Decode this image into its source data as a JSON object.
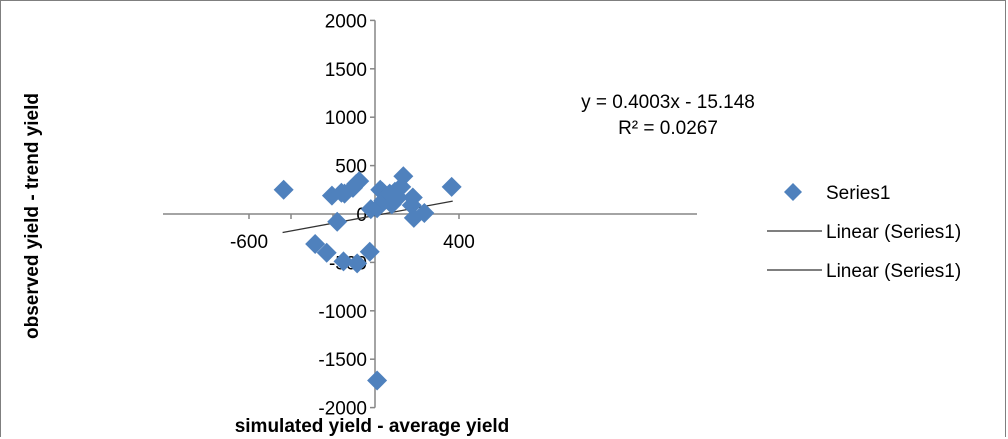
{
  "chart_data": {
    "type": "scatter",
    "title": "",
    "xlabel": "simulated yield - average yield",
    "ylabel": "observed yield - trend yield",
    "xlim": [
      -700,
      600
    ],
    "ylim": [
      -2000,
      2000
    ],
    "x_tick_labels": [
      {
        "value": -600,
        "label": "-600"
      },
      {
        "value": 400,
        "label": "400"
      }
    ],
    "y_ticks": [
      2000,
      1500,
      1000,
      500,
      0,
      -500,
      -1000,
      -1500,
      -2000
    ],
    "y_tick_labels": [
      "2000",
      "1500",
      "1000",
      "500",
      "0",
      "-500",
      "-1000",
      "-1500",
      "-2000"
    ],
    "grid": false,
    "legend_position": "right",
    "legend": [
      {
        "label": "Series1",
        "kind": "marker"
      },
      {
        "label": "Linear (Series1)",
        "kind": "line"
      },
      {
        "label": "Linear (Series1)",
        "kind": "line"
      }
    ],
    "trendline": {
      "equation": "y = 0.4003x - 15.148",
      "r_squared": "R² = 0.0267",
      "slope": 0.4003,
      "intercept": -15.148,
      "x_range": [
        -440,
        370
      ]
    },
    "series": [
      {
        "name": "Series1",
        "color": "#4f81bd",
        "points": [
          {
            "x": -435,
            "y": 250
          },
          {
            "x": -285,
            "y": -310
          },
          {
            "x": -230,
            "y": -400
          },
          {
            "x": -205,
            "y": 190
          },
          {
            "x": -180,
            "y": -80
          },
          {
            "x": -160,
            "y": 220
          },
          {
            "x": -145,
            "y": 210
          },
          {
            "x": -150,
            "y": -490
          },
          {
            "x": -105,
            "y": 270
          },
          {
            "x": -90,
            "y": 310
          },
          {
            "x": -75,
            "y": 340
          },
          {
            "x": -85,
            "y": -510
          },
          {
            "x": -25,
            "y": -390
          },
          {
            "x": -20,
            "y": 50
          },
          {
            "x": 10,
            "y": 60
          },
          {
            "x": 10,
            "y": -1720
          },
          {
            "x": 25,
            "y": 250
          },
          {
            "x": 35,
            "y": 230
          },
          {
            "x": 40,
            "y": 140
          },
          {
            "x": 70,
            "y": 210
          },
          {
            "x": 80,
            "y": 100
          },
          {
            "x": 95,
            "y": 230
          },
          {
            "x": 110,
            "y": 170
          },
          {
            "x": 125,
            "y": 280
          },
          {
            "x": 135,
            "y": 390
          },
          {
            "x": 175,
            "y": 90
          },
          {
            "x": 180,
            "y": 170
          },
          {
            "x": 185,
            "y": -40
          },
          {
            "x": 235,
            "y": 10
          },
          {
            "x": 365,
            "y": 280
          }
        ]
      }
    ]
  }
}
